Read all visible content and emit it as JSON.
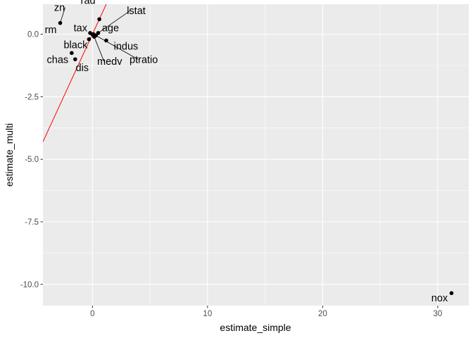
{
  "chart_data": {
    "type": "scatter",
    "xlabel": "estimate_simple",
    "ylabel": "estimate_multi",
    "xlim": [
      -4.3,
      32.7
    ],
    "ylim": [
      -10.85,
      1.2
    ],
    "x_ticks": [
      0,
      10,
      20,
      30
    ],
    "x_tick_labels": [
      "0",
      "10",
      "20",
      "30"
    ],
    "y_ticks": [
      0.0,
      -2.5,
      -5.0,
      -7.5,
      -10.0
    ],
    "y_tick_labels": [
      "0.0",
      "-2.5",
      "-5.0",
      "-7.5",
      "-10.0"
    ],
    "grid": true,
    "background_color": "#ebebeb",
    "grid_color": "#ffffff",
    "point_color": "#000000",
    "reference_line": {
      "slope": 1,
      "intercept": 0,
      "color": "#ff0000"
    },
    "points": [
      {
        "name": "zn",
        "x": -2.8,
        "y": 0.45
      },
      {
        "name": "rad",
        "x": 0.6,
        "y": 0.6
      },
      {
        "name": "lstat",
        "x": 0.5,
        "y": 0.05
      },
      {
        "name": "rm",
        "x": -0.2,
        "y": 0.05
      },
      {
        "name": "tax",
        "x": 0.0,
        "y": 0.0
      },
      {
        "name": "age",
        "x": 0.1,
        "y": 0.0
      },
      {
        "name": "indus",
        "x": 1.2,
        "y": -0.25
      },
      {
        "name": "black",
        "x": -0.3,
        "y": -0.2
      },
      {
        "name": "ptratio",
        "x": 0.3,
        "y": -0.05
      },
      {
        "name": "medv",
        "x": 0.15,
        "y": -0.1
      },
      {
        "name": "chas",
        "x": -1.8,
        "y": -0.75
      },
      {
        "name": "dis",
        "x": -1.5,
        "y": -1.0
      },
      {
        "name": "nox",
        "x": 31.2,
        "y": -10.35
      }
    ]
  }
}
